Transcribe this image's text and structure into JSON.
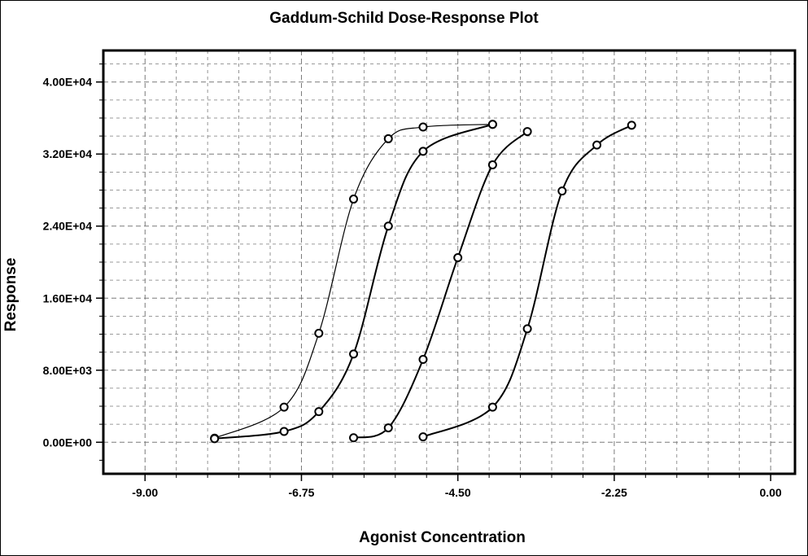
{
  "chart_data": {
    "type": "scatter",
    "title": "Gaddum-Schild Dose-Response Plot",
    "xlabel": "Agonist Concentration",
    "ylabel": "Response",
    "xlim": [
      -9.6,
      0.35
    ],
    "ylim": [
      -3500,
      43500
    ],
    "xticks": [
      -9.0,
      -6.75,
      -4.5,
      -2.25,
      0.0
    ],
    "xtick_labels": [
      "-9.00",
      "-6.75",
      "-4.50",
      "-2.25",
      "0.00"
    ],
    "yticks": [
      0,
      8000,
      16000,
      24000,
      32000,
      40000
    ],
    "ytick_labels": [
      "0.00E+00",
      "8.00E+03",
      "1.60E+04",
      "2.40E+04",
      "3.20E+04",
      "4.00E+04"
    ],
    "grid": true,
    "series": [
      {
        "points": [
          [
            -8.0,
            450
          ],
          [
            -7.0,
            3900
          ],
          [
            -6.5,
            12100
          ],
          [
            -6.0,
            27000
          ],
          [
            -5.5,
            33700
          ],
          [
            -5.0,
            35000
          ],
          [
            -4.0,
            35300
          ]
        ]
      },
      {
        "points": [
          [
            -8.0,
            400
          ],
          [
            -7.0,
            1200
          ],
          [
            -6.5,
            3400
          ],
          [
            -6.0,
            9800
          ],
          [
            -5.5,
            24000
          ],
          [
            -5.0,
            32300
          ],
          [
            -4.0,
            35300
          ]
        ]
      },
      {
        "points": [
          [
            -6.0,
            500
          ],
          [
            -5.5,
            1600
          ],
          [
            -5.0,
            9200
          ],
          [
            -4.5,
            20500
          ],
          [
            -4.0,
            30800
          ],
          [
            -3.5,
            34500
          ]
        ]
      },
      {
        "points": [
          [
            -5.0,
            600
          ],
          [
            -4.0,
            3900
          ],
          [
            -3.5,
            12600
          ],
          [
            -3.0,
            27900
          ],
          [
            -2.5,
            33000
          ],
          [
            -2.0,
            35200
          ]
        ]
      }
    ]
  }
}
